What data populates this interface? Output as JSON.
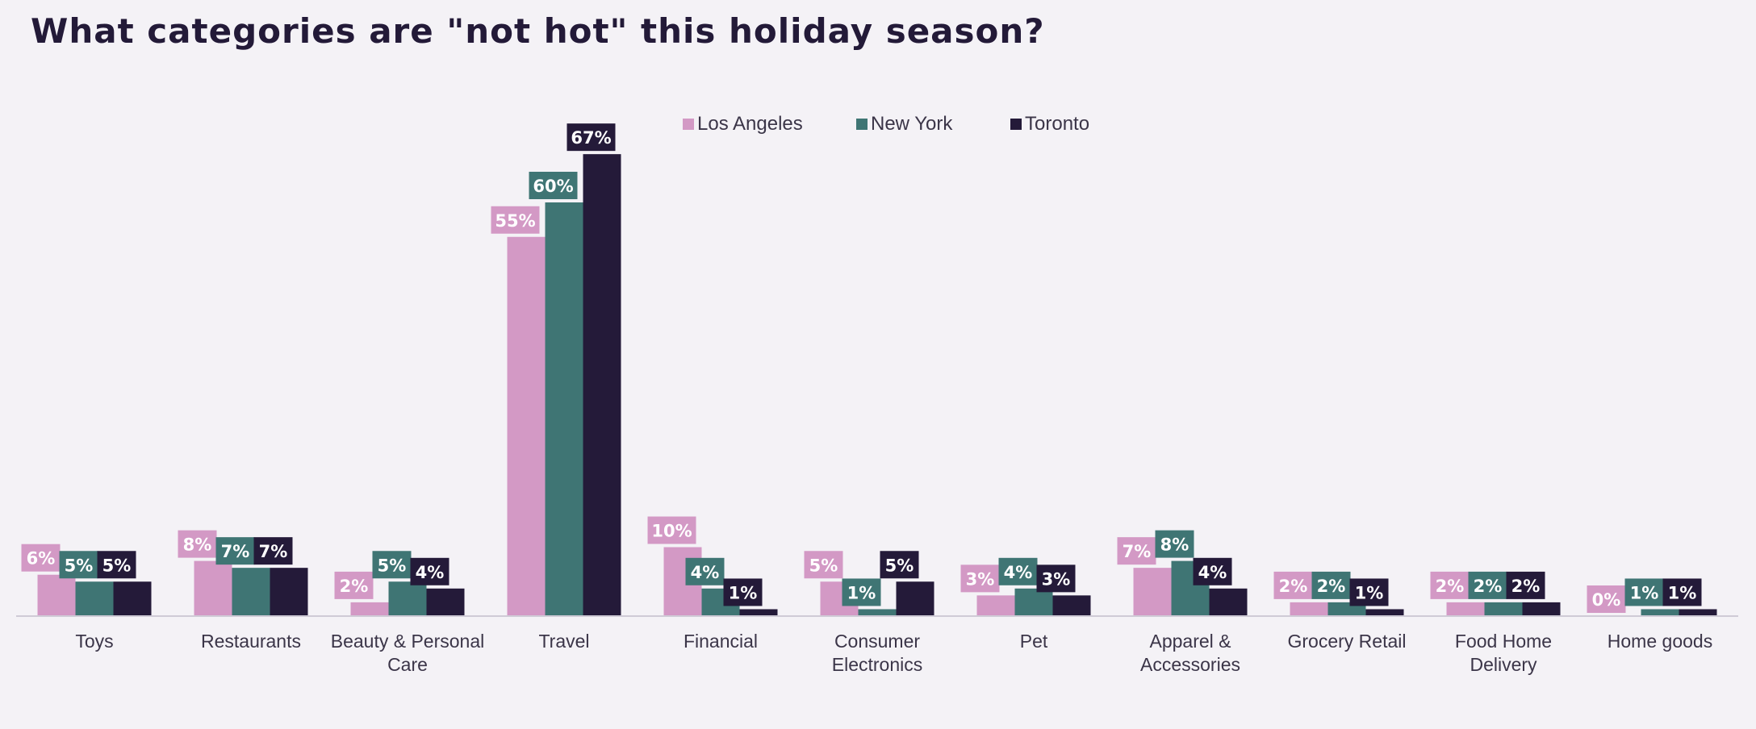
{
  "chart_data": {
    "type": "bar",
    "title": "What categories are \"not hot\" this holiday season?",
    "xlabel": "",
    "ylabel": "",
    "ylim": [
      0,
      70
    ],
    "grid": false,
    "legend_position": "top-center",
    "categories": [
      [
        "Toys"
      ],
      [
        "Restaurants"
      ],
      [
        "Beauty & Personal",
        "Care"
      ],
      [
        "Travel"
      ],
      [
        "Financial"
      ],
      [
        "Consumer",
        "Electronics"
      ],
      [
        "Pet"
      ],
      [
        "Apparel &",
        "Accessories"
      ],
      [
        "Grocery Retail"
      ],
      [
        "Food Home",
        "Delivery"
      ],
      [
        "Home goods"
      ]
    ],
    "series": [
      {
        "name": "Los Angeles",
        "color": "#d399c5",
        "values": [
          6,
          8,
          2,
          55,
          10,
          5,
          3,
          7,
          2,
          2,
          0
        ],
        "labels": [
          "6%",
          "8%",
          "2%",
          "55%",
          "10%",
          "5%",
          "3%",
          "7%",
          "2%",
          "2%",
          "0%"
        ]
      },
      {
        "name": "New York",
        "color": "#3f7574",
        "values": [
          5,
          7,
          5,
          60,
          4,
          1,
          4,
          8,
          2,
          2,
          1
        ],
        "labels": [
          "5%",
          "7%",
          "5%",
          "60%",
          "4%",
          "1%",
          "4%",
          "8%",
          "2%",
          "2%",
          "1%"
        ]
      },
      {
        "name": "Toronto",
        "color": "#241a39",
        "values": [
          5,
          7,
          4,
          67,
          1,
          5,
          3,
          4,
          1,
          2,
          1
        ],
        "labels": [
          "5%",
          "7%",
          "4%",
          "67%",
          "1%",
          "5%",
          "3%",
          "4%",
          "1%",
          "2%",
          "1%"
        ]
      }
    ]
  }
}
